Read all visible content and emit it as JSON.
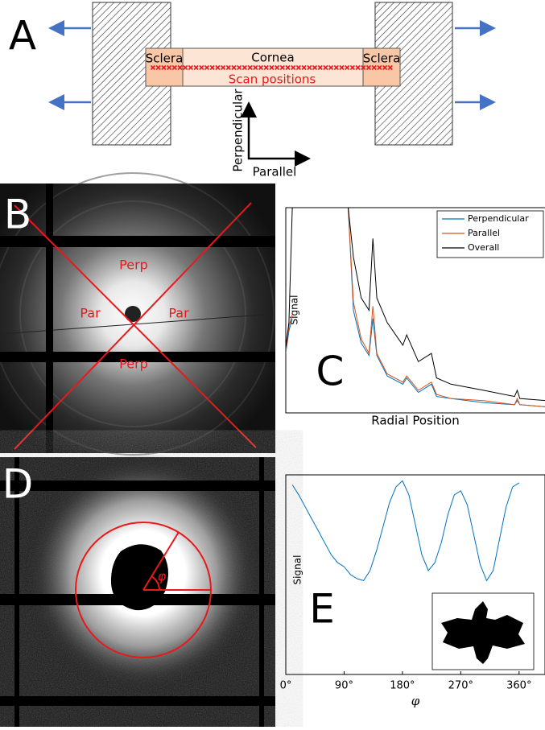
{
  "panel_a": {
    "label": "A",
    "sclera_left": "Sclera",
    "cornea": "Cornea",
    "sclera_right": "Sclera",
    "scan_positions": "Scan positions",
    "perpendicular": "Perpendicular",
    "parallel": "Parallel"
  },
  "panel_b": {
    "label": "B",
    "top": "Perp",
    "left": "Par",
    "right": "Par",
    "bottom": "Perp"
  },
  "panel_d": {
    "label": "D",
    "angle": "φ"
  },
  "chart_data": [
    {
      "type": "line",
      "label": "C",
      "y_label": "Signal",
      "x_label": "Radial Position",
      "xlim": [
        0,
        100
      ],
      "ylim": [
        0,
        100
      ],
      "x": [
        0,
        1.2,
        2.5,
        10,
        24,
        26,
        29,
        32,
        33.5,
        35,
        39,
        45,
        46.5,
        51,
        56,
        58,
        63.5,
        76,
        88,
        89,
        90,
        100
      ],
      "series": [
        {
          "name": "Perpendicular",
          "color": "#0072BD",
          "values": [
            29,
            40,
            46,
            null,
            100,
            50,
            34,
            28,
            46,
            28,
            18,
            14,
            17,
            10,
            14,
            8,
            7,
            5,
            4,
            6,
            4,
            3
          ]
        },
        {
          "name": "Parallel",
          "color": "#D95319",
          "values": [
            30,
            42,
            48,
            null,
            100,
            54,
            36,
            29,
            52,
            29,
            19,
            15,
            18,
            11,
            15,
            9,
            7,
            6,
            4,
            7,
            4,
            3
          ]
        },
        {
          "name": "Overall",
          "color": "#000000",
          "values": [
            32,
            44,
            100,
            null,
            100,
            76,
            56,
            50,
            85,
            56,
            44,
            33,
            38,
            25,
            29,
            17,
            14,
            11,
            8,
            11,
            7,
            6
          ]
        }
      ]
    },
    {
      "type": "line",
      "label": "E",
      "y_label": "Signal",
      "x_label": "φ",
      "xlim": [
        0,
        400
      ],
      "ylim": [
        0,
        100
      ],
      "xticks": [
        {
          "value": 0,
          "label": "0°"
        },
        {
          "value": 90,
          "label": "90°"
        },
        {
          "value": 180,
          "label": "180°"
        },
        {
          "value": 270,
          "label": "270°"
        },
        {
          "value": 360,
          "label": "360°"
        }
      ],
      "x": [
        10,
        20,
        30,
        40,
        50,
        60,
        70,
        80,
        90,
        100,
        110,
        120,
        130,
        140,
        150,
        160,
        170,
        180,
        190,
        200,
        210,
        220,
        230,
        240,
        250,
        260,
        270,
        280,
        290,
        300,
        310,
        320,
        330,
        340,
        350,
        360
      ],
      "series": [
        {
          "color": "#0072BD",
          "values": [
            95,
            90,
            84,
            78,
            72,
            66,
            60,
            56,
            54,
            50,
            48,
            47,
            52,
            62,
            74,
            86,
            94,
            97,
            90,
            75,
            60,
            52,
            56,
            66,
            80,
            90,
            92,
            85,
            70,
            55,
            47,
            52,
            68,
            84,
            94,
            96
          ]
        }
      ]
    }
  ]
}
